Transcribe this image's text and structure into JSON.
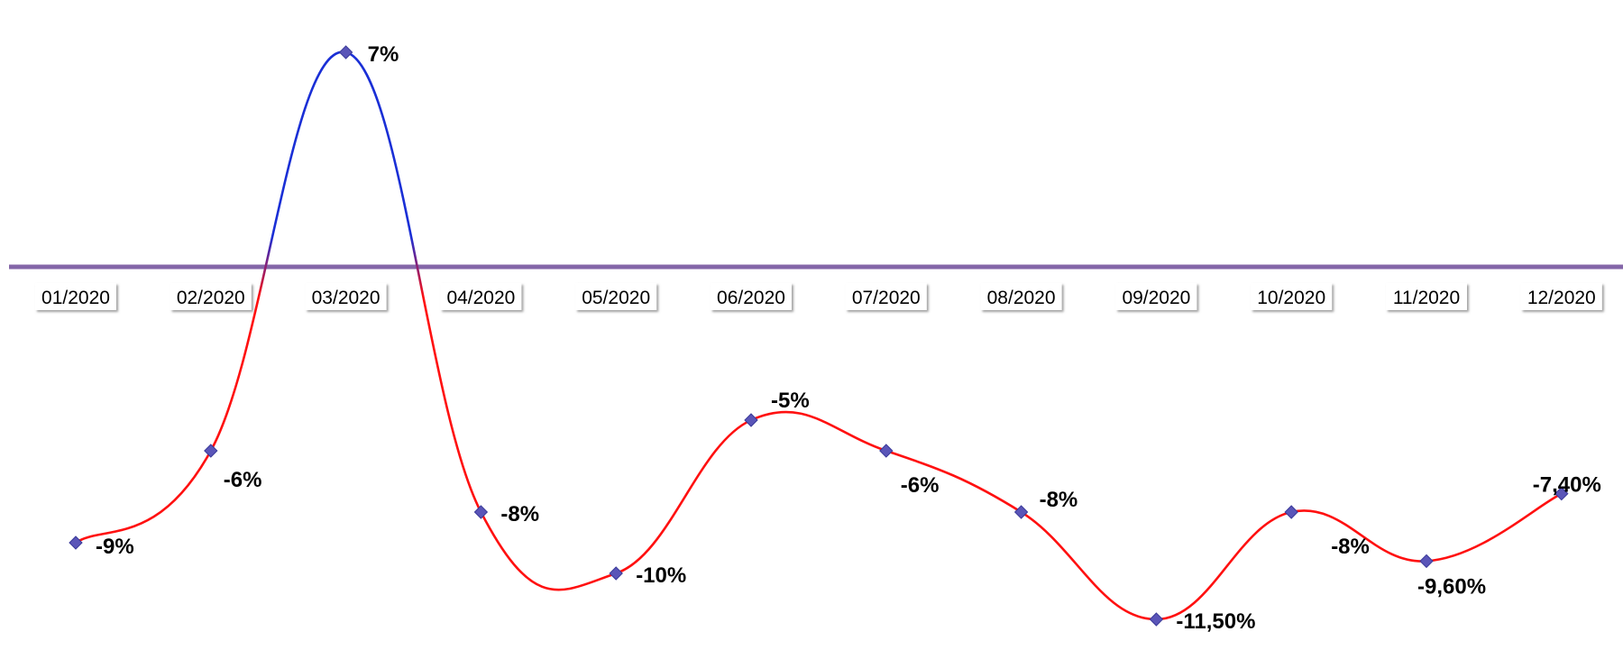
{
  "chart_data": {
    "type": "line",
    "categories": [
      "01/2020",
      "02/2020",
      "03/2020",
      "04/2020",
      "05/2020",
      "06/2020",
      "07/2020",
      "08/2020",
      "09/2020",
      "10/2020",
      "11/2020",
      "12/2020"
    ],
    "series": [
      {
        "values": [
          -9,
          -6,
          7,
          -8,
          -10,
          -5,
          -6,
          -8,
          -11.5,
          -8,
          -9.6,
          -7.4
        ],
        "labels": [
          "-9%",
          "-6%",
          "7%",
          "-8%",
          "-10%",
          "-5%",
          "-6%",
          "-8%",
          "-11,50%",
          "-8%",
          "-9,60%",
          "-7,40%"
        ]
      }
    ],
    "title": "",
    "xlabel": "",
    "ylabel": "",
    "ylim": [
      -12,
      8
    ],
    "smooth": true,
    "grid": false,
    "legend": "none",
    "colors": {
      "positive_line": "#1a2fd6",
      "negative_line": "#ff1010",
      "zero_axis": "#8466a8",
      "marker": "#5a55b8",
      "marker_edge": "#3a3a9a"
    }
  }
}
